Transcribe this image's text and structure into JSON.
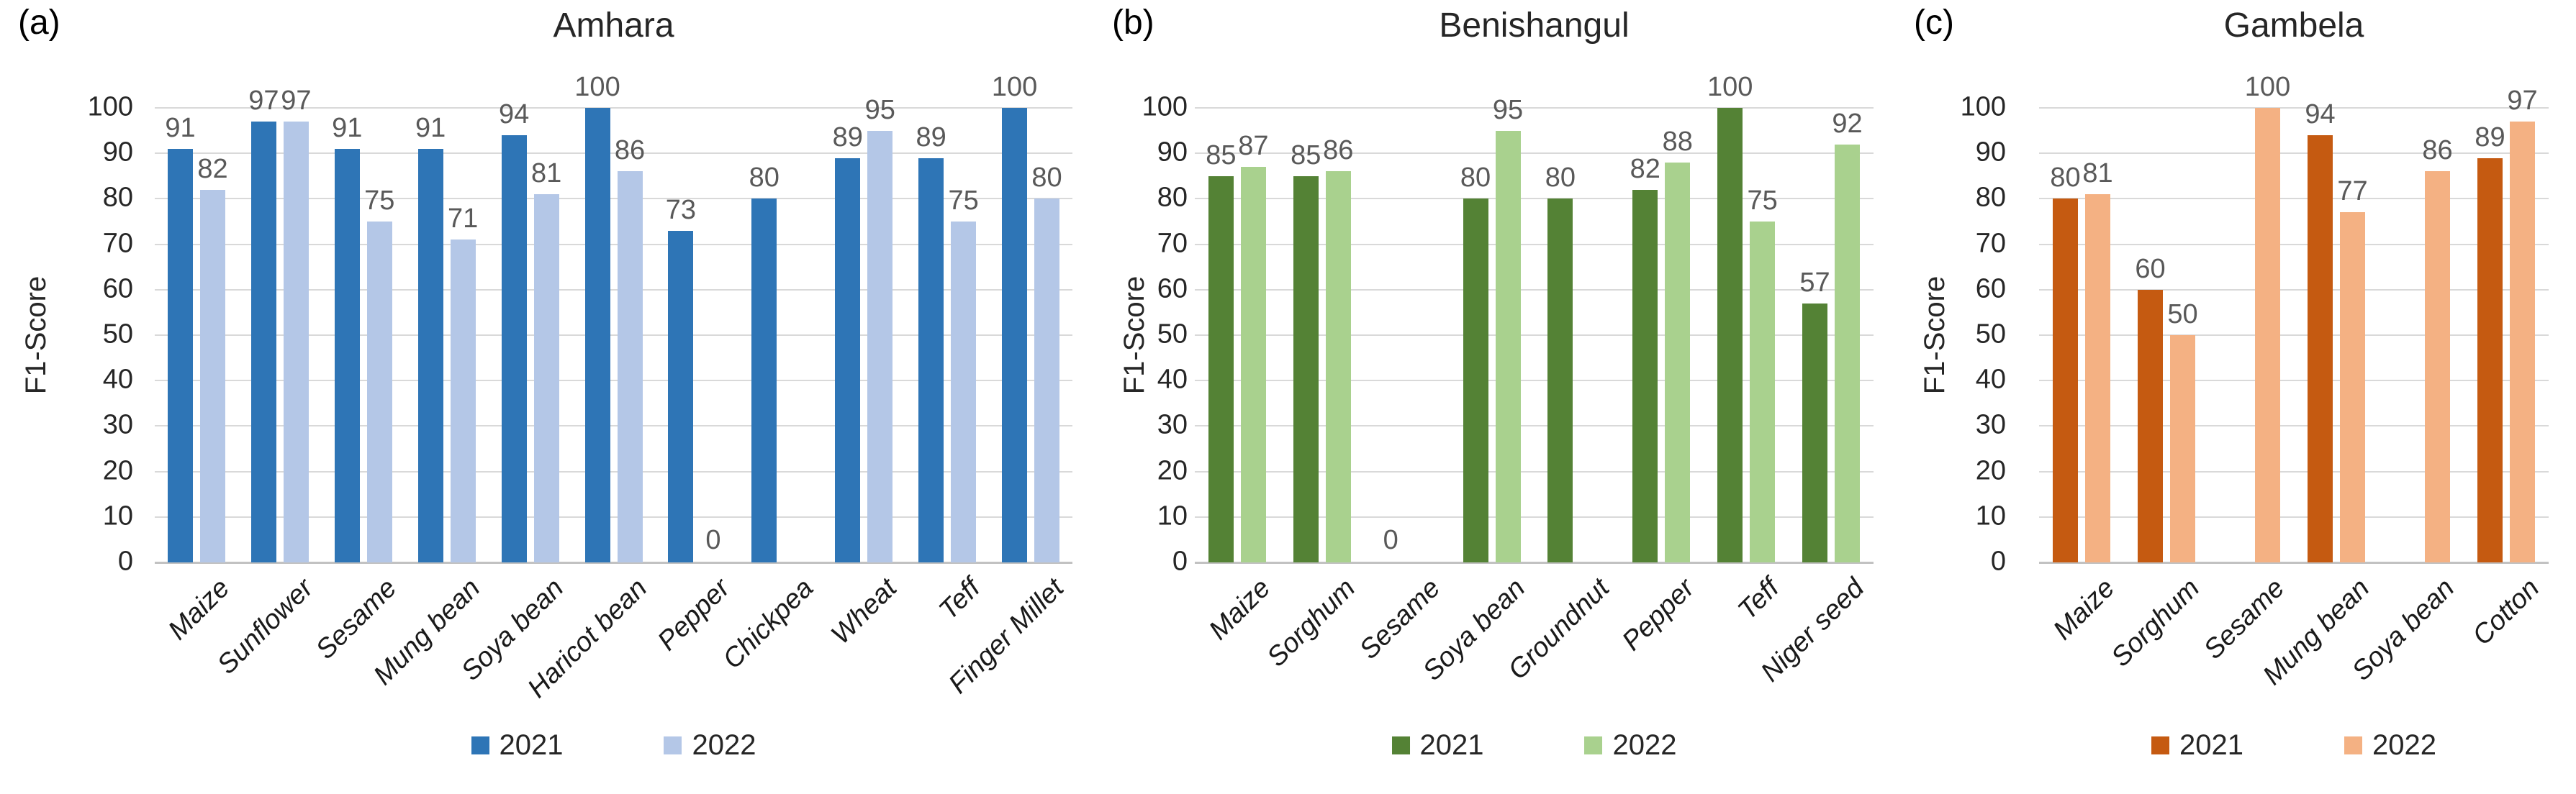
{
  "style": {
    "background": "#FFFFFF",
    "grid_color": "#D9D9D9",
    "axis_line_color": "#C2C2C2",
    "data_label_color": "#595959",
    "text_color": "#262626"
  },
  "chart_data": [
    {
      "type": "bar",
      "panel_label": "(a)",
      "title": "Amhara",
      "ylabel": "F1-Score",
      "ylim": [
        0,
        100
      ],
      "yticks": [
        100,
        90,
        80,
        70,
        60,
        50,
        40,
        30,
        20,
        10,
        0
      ],
      "grid": true,
      "legend_position": "bottom",
      "categories": [
        "Maize",
        "Sunflower",
        "Sesame",
        "Mung bean",
        "Soya bean",
        "Haricot bean",
        "Pepper",
        "Chickpea",
        "Wheat",
        "Teff",
        "Finger Millet"
      ],
      "series": [
        {
          "name": "2021",
          "color": "#2E75B6",
          "values": [
            91,
            97,
            91,
            91,
            94,
            100,
            73,
            80,
            89,
            89,
            100
          ]
        },
        {
          "name": "2022",
          "color": "#B4C7E7",
          "values": [
            82,
            97,
            75,
            71,
            81,
            86,
            0,
            null,
            95,
            75,
            80
          ]
        }
      ]
    },
    {
      "type": "bar",
      "panel_label": "(b)",
      "title": "Benishangul",
      "ylabel": "F1-Score",
      "ylim": [
        0,
        100
      ],
      "yticks": [
        100,
        90,
        80,
        70,
        60,
        50,
        40,
        30,
        20,
        10,
        0
      ],
      "grid": true,
      "legend_position": "bottom",
      "categories": [
        "Maize",
        "Sorghum",
        "Sesame",
        "Soya bean",
        "Groundnut",
        "Pepper",
        "Teff",
        "Niger seed"
      ],
      "series": [
        {
          "name": "2021",
          "color": "#548235",
          "values": [
            85,
            85,
            0,
            80,
            80,
            82,
            100,
            57
          ]
        },
        {
          "name": "2022",
          "color": "#A9D18E",
          "values": [
            87,
            86,
            null,
            95,
            null,
            88,
            75,
            92
          ]
        }
      ]
    },
    {
      "type": "bar",
      "panel_label": "(c)",
      "title": "Gambela",
      "ylabel": "F1-Score",
      "ylim": [
        0,
        100
      ],
      "yticks": [
        100,
        90,
        80,
        70,
        60,
        50,
        40,
        30,
        20,
        10,
        0
      ],
      "grid": true,
      "legend_position": "bottom",
      "categories": [
        "Maize",
        "Sorghum",
        "Sesame",
        "Mung bean",
        "Soya bean",
        "Cotton"
      ],
      "series": [
        {
          "name": "2021",
          "color": "#C55A11",
          "values": [
            80,
            60,
            null,
            94,
            null,
            89
          ]
        },
        {
          "name": "2022",
          "color": "#F4B183",
          "values": [
            81,
            50,
            100,
            77,
            86,
            97
          ]
        }
      ]
    }
  ]
}
